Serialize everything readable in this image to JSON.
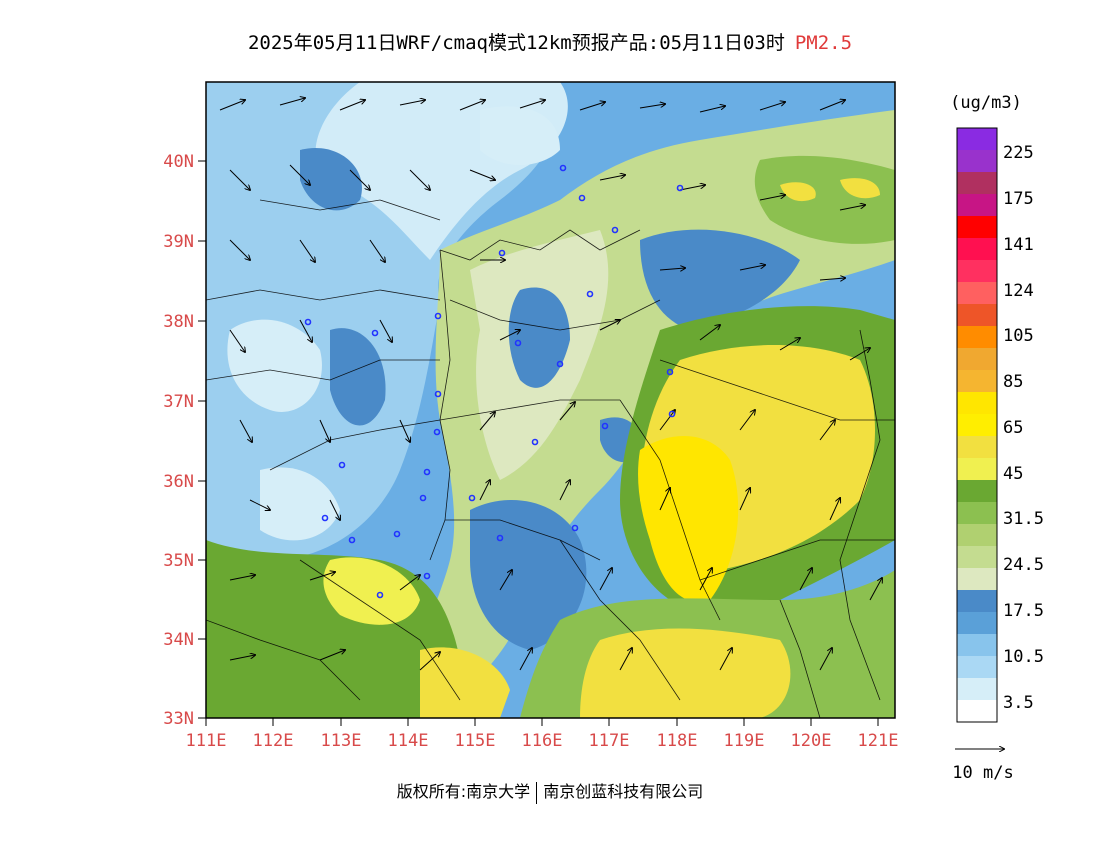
{
  "title": {
    "main": "2025年05月11日WRF/cmaq模式12km预报产品:05月11日03时",
    "variable": "PM2.5"
  },
  "map": {
    "lat_labels": [
      "40N",
      "39N",
      "38N",
      "37N",
      "36N",
      "35N",
      "34N",
      "33N"
    ],
    "lon_labels": [
      "111E",
      "112E",
      "113E",
      "114E",
      "115E",
      "116E",
      "117E",
      "118E",
      "119E",
      "120E",
      "121E"
    ]
  },
  "colorbar": {
    "unit": "(ug/m3)",
    "levels": [
      "225",
      "175",
      "141",
      "124",
      "105",
      "85",
      "65",
      "45",
      "31.5",
      "24.5",
      "17.5",
      "10.5",
      "3.5"
    ],
    "colors": [
      "#8a2be2",
      "#9932cc",
      "#b03060",
      "#c71585",
      "#ff0000",
      "#ff1050",
      "#ff3060",
      "#ff6060",
      "#ee5528",
      "#ff8c00",
      "#f0a830",
      "#f5b530",
      "#ffe600",
      "#ffee00",
      "#f2e040",
      "#f0f050",
      "#6aa832",
      "#8cc050",
      "#b0d070",
      "#c4dc90",
      "#dde8c0",
      "#4a8ac8",
      "#5aa0d8",
      "#88c4ec",
      "#aad8f4",
      "#d6eef8",
      "#ffffff"
    ]
  },
  "wind_legend": {
    "label": "10 m/s"
  },
  "copyright": {
    "left": "版权所有:南京大学",
    "right": "南京创蓝科技有限公司"
  }
}
